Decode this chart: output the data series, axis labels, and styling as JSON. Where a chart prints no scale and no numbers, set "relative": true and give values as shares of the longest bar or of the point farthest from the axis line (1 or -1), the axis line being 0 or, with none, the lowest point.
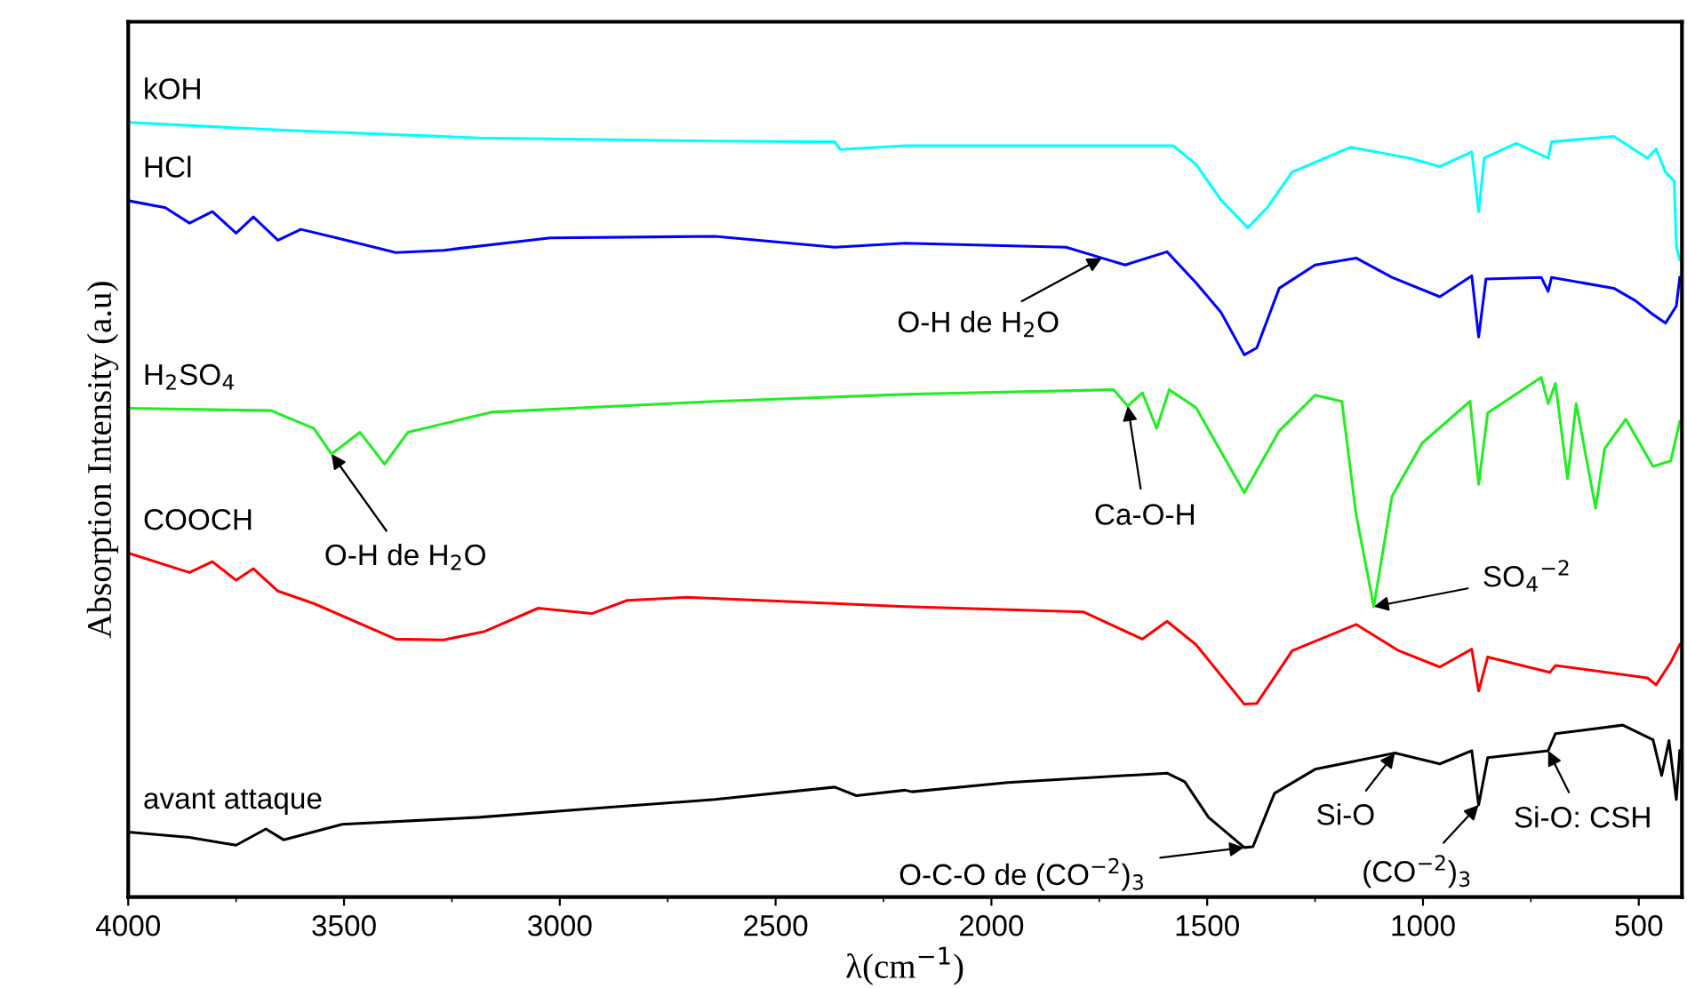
{
  "chart_data": {
    "type": "line",
    "relative": true,
    "xlabel": "λ(cm$^{−1}$)",
    "ylabel": "Absorption Intensity (a.u)",
    "xlim": [
      4000,
      400
    ],
    "xticks": [
      4000,
      3500,
      3000,
      2500,
      2000,
      1500,
      1000,
      500
    ],
    "grid": false,
    "legend": false,
    "marker": "none",
    "line_style": "solid",
    "series": [
      {
        "name": "kOH",
        "color": "#00ffff",
        "x": [
          4000,
          3640,
          3187,
          2640,
          2363,
          2350,
          2200,
          1579,
          1526,
          1468,
          1406,
          1361,
          1303,
          1167,
          1031,
          961,
          887,
          871,
          858,
          784,
          710,
          702,
          558,
          480,
          460,
          438,
          418,
          413,
          405
        ],
        "values": [
          1.0,
          0.99,
          0.98,
          0.976,
          0.975,
          0.965,
          0.97,
          0.97,
          0.946,
          0.9,
          0.864,
          0.89,
          0.936,
          0.968,
          0.954,
          0.943,
          0.962,
          0.885,
          0.954,
          0.973,
          0.954,
          0.975,
          0.982,
          0.954,
          0.966,
          0.936,
          0.924,
          0.84,
          0.823
        ]
      },
      {
        "name": "HCl",
        "color": "#0000ff",
        "x": [
          4000,
          3914,
          3858,
          3805,
          3750,
          3710,
          3653,
          3600,
          3517,
          3380,
          3269,
          3022,
          2640,
          2363,
          2200,
          1827,
          1744,
          1690,
          1593,
          1526,
          1468,
          1414,
          1385,
          1333,
          1250,
          1155,
          1072,
          961,
          887,
          871,
          854,
          726,
          710,
          702,
          558,
          508,
          467,
          438,
          413,
          405
        ],
        "values": [
          0.899,
          0.89,
          0.87,
          0.885,
          0.857,
          0.878,
          0.848,
          0.862,
          0.851,
          0.832,
          0.835,
          0.851,
          0.853,
          0.839,
          0.844,
          0.839,
          0.825,
          0.816,
          0.833,
          0.793,
          0.755,
          0.7,
          0.709,
          0.786,
          0.816,
          0.825,
          0.8,
          0.775,
          0.802,
          0.723,
          0.798,
          0.8,
          0.782,
          0.8,
          0.786,
          0.77,
          0.752,
          0.741,
          0.763,
          0.8
        ]
      },
      {
        "name": "H$_{2}$SO$_{4}$",
        "color": "#22ee22",
        "x": [
          4000,
          3669,
          3570,
          3529,
          3463,
          3406,
          3352,
          3159,
          2640,
          2200,
          1717,
          1684,
          1650,
          1617,
          1588,
          1526,
          1414,
          1333,
          1250,
          1188,
          1155,
          1114,
          1072,
          1056,
          1002,
          891,
          871,
          850,
          726,
          710,
          693,
          665,
          645,
          600,
          579,
          530,
          467,
          426,
          405
        ],
        "values": [
          0.631,
          0.628,
          0.605,
          0.572,
          0.6,
          0.559,
          0.6,
          0.626,
          0.64,
          0.649,
          0.655,
          0.634,
          0.651,
          0.605,
          0.655,
          0.632,
          0.522,
          0.602,
          0.648,
          0.64,
          0.494,
          0.375,
          0.517,
          0.533,
          0.586,
          0.64,
          0.533,
          0.625,
          0.671,
          0.637,
          0.663,
          0.54,
          0.637,
          0.502,
          0.579,
          0.617,
          0.556,
          0.563,
          0.614
        ]
      },
      {
        "name": "COOCH",
        "color": "#ff0000",
        "x": [
          4000,
          3858,
          3805,
          3750,
          3710,
          3653,
          3570,
          3380,
          3269,
          3174,
          3050,
          2926,
          2844,
          2706,
          2363,
          2200,
          1786,
          1650,
          1593,
          1526,
          1414,
          1385,
          1303,
          1155,
          1056,
          961,
          887,
          871,
          850,
          706,
          693,
          480,
          460,
          426,
          405
        ],
        "values": [
          0.444,
          0.419,
          0.433,
          0.409,
          0.424,
          0.395,
          0.379,
          0.333,
          0.332,
          0.343,
          0.373,
          0.366,
          0.383,
          0.387,
          0.379,
          0.375,
          0.368,
          0.333,
          0.356,
          0.326,
          0.249,
          0.25,
          0.318,
          0.352,
          0.318,
          0.297,
          0.32,
          0.266,
          0.31,
          0.29,
          0.299,
          0.283,
          0.274,
          0.303,
          0.326
        ]
      },
      {
        "name": "avant attaque",
        "color": "#000000",
        "x": [
          4000,
          3858,
          3750,
          3681,
          3640,
          3504,
          3187,
          2911,
          2640,
          2363,
          2313,
          2200,
          2184,
          1962,
          1593,
          1552,
          1497,
          1414,
          1394,
          1344,
          1250,
          1065,
          961,
          887,
          871,
          850,
          710,
          693,
          537,
          467,
          447,
          430,
          413,
          405
        ],
        "values": [
          0.084,
          0.077,
          0.067,
          0.088,
          0.074,
          0.094,
          0.103,
          0.115,
          0.126,
          0.142,
          0.131,
          0.138,
          0.136,
          0.148,
          0.16,
          0.149,
          0.103,
          0.064,
          0.065,
          0.134,
          0.165,
          0.186,
          0.172,
          0.189,
          0.119,
          0.18,
          0.189,
          0.211,
          0.222,
          0.203,
          0.157,
          0.202,
          0.126,
          0.189
        ]
      }
    ],
    "annotations": [
      {
        "text": "O-H de H$_{2}$O",
        "x": 3529,
        "y": 0.572
      },
      {
        "text": "O-H de H$_{2}$O",
        "x": 1744,
        "y": 0.825
      },
      {
        "text": "Ca-O-H",
        "x": 1684,
        "y": 0.634
      },
      {
        "text": "SO$_{4}$$^{−2}$",
        "x": 1114,
        "y": 0.375
      },
      {
        "text": "O-C-O de (CO$^{−2}$)$_{3}$",
        "x": 1414,
        "y": 0.064
      },
      {
        "text": "Si-O",
        "x": 1065,
        "y": 0.186
      },
      {
        "text": "(CO$^{−2}$)$_{3}$",
        "x": 871,
        "y": 0.119
      },
      {
        "text": "Si-O: CSH",
        "x": 710,
        "y": 0.189
      }
    ]
  }
}
